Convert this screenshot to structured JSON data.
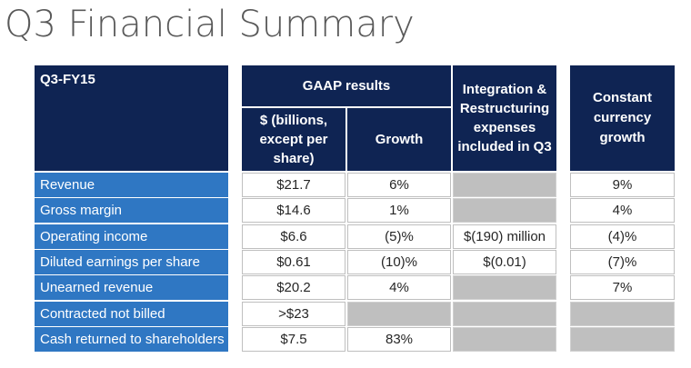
{
  "title": "Q3 Financial Summary",
  "header": {
    "period": "Q3-FY15",
    "gaap": "GAAP results",
    "dollars_1": "$ (billions,",
    "dollars_2": "except per",
    "dollars_3": "share)",
    "growth": "Growth",
    "integration_1": "Integration &",
    "integration_2": "Restructuring",
    "integration_3": "expenses",
    "integration_4": "included in Q3",
    "constant_1": "Constant",
    "constant_2": "currency",
    "constant_3": "growth"
  },
  "rows": [
    {
      "label": "Revenue",
      "dollars": "$21.7",
      "growth": "6%",
      "integration": "",
      "constant": "9%"
    },
    {
      "label": "Gross margin",
      "dollars": "$14.6",
      "growth": "1%",
      "integration": "",
      "constant": "4%"
    },
    {
      "label": "Operating income",
      "dollars": "$6.6",
      "growth": "(5)%",
      "integration": "$(190) million",
      "constant": "(4)%"
    },
    {
      "label": "Diluted earnings per share",
      "dollars": "$0.61",
      "growth": "(10)%",
      "integration": "$(0.01)",
      "constant": "(7)%"
    },
    {
      "label": "Unearned revenue",
      "dollars": "$20.2",
      "growth": "4%",
      "integration": "",
      "constant": "7%"
    },
    {
      "label": "Contracted not billed",
      "dollars": ">$23",
      "growth": "",
      "integration": "",
      "constant": ""
    },
    {
      "label": "Cash returned to shareholders",
      "dollars": "$7.5",
      "growth": "83%",
      "integration": "",
      "constant": ""
    }
  ],
  "colors": {
    "header": "#0f2453",
    "label": "#2f77c3",
    "empty": "#bfbfbf"
  }
}
